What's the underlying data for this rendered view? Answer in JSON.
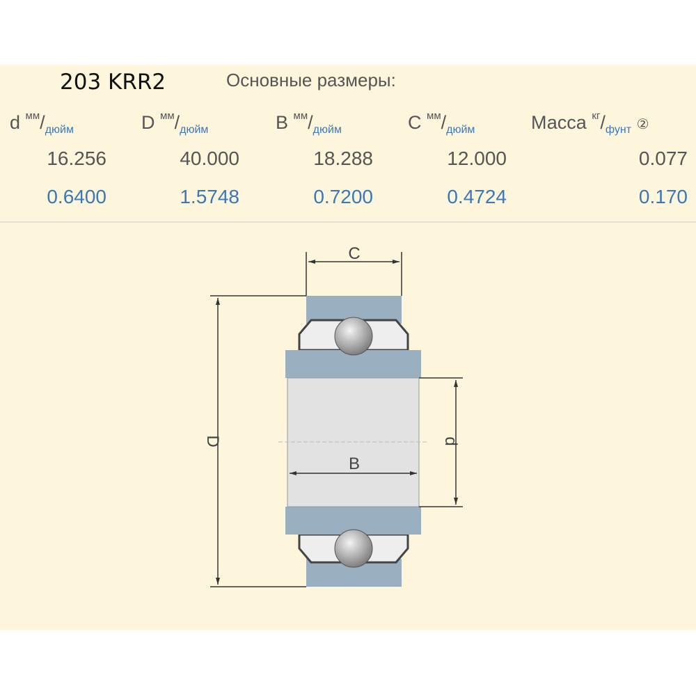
{
  "title": "203 KRR2",
  "subtitle": "Основные размеры:",
  "columns": [
    {
      "symbol": "d",
      "unit_top": "мм",
      "unit_bottom": "дюйм",
      "mm": "16.256",
      "inch": "0.6400"
    },
    {
      "symbol": "D",
      "unit_top": "мм",
      "unit_bottom": "дюйм",
      "mm": "40.000",
      "inch": "1.5748"
    },
    {
      "symbol": "B",
      "unit_top": "мм",
      "unit_bottom": "дюйм",
      "mm": "18.288",
      "inch": "0.7200"
    },
    {
      "symbol": "C",
      "unit_top": "мм",
      "unit_bottom": "дюйм",
      "mm": "12.000",
      "inch": "0.4724"
    },
    {
      "symbol": "Масса",
      "unit_top": "кг",
      "unit_bottom": "фунт",
      "note": "②",
      "mm": "0.077",
      "inch": "0.170"
    }
  ],
  "diagram": {
    "label_C": "C",
    "label_D": "D",
    "label_B": "B",
    "label_d": "d"
  },
  "colors": {
    "background": "#fdf6dc",
    "ring": "#9aafc0",
    "accent": "#3a78b8"
  }
}
